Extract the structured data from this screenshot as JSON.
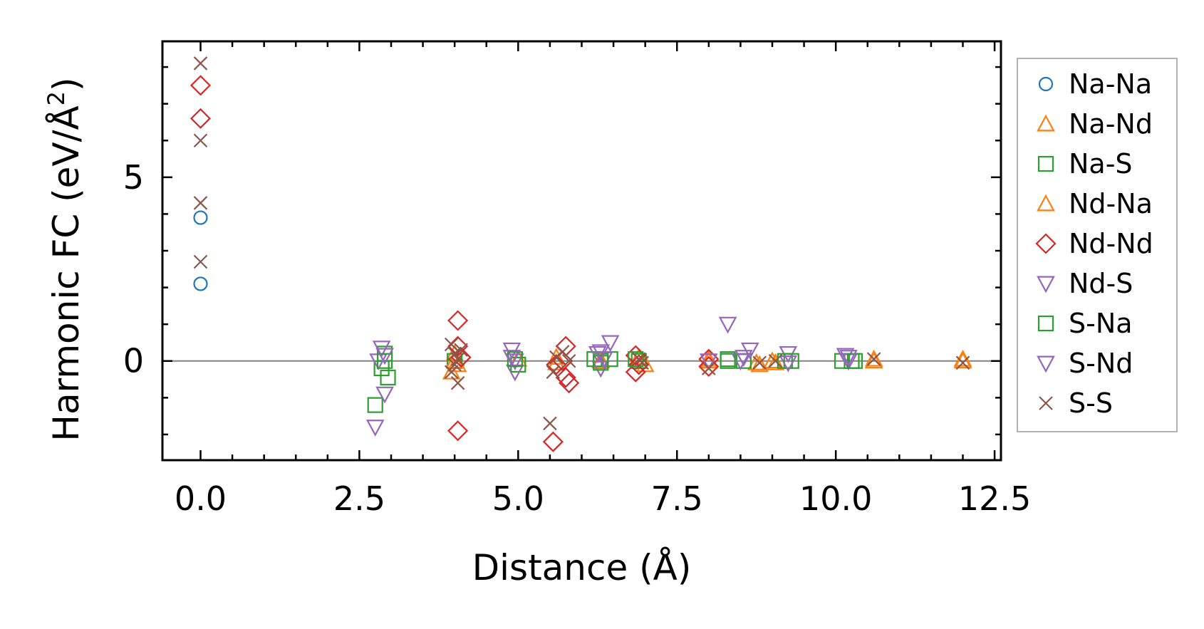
{
  "chart_data": {
    "type": "scatter",
    "title": "",
    "xlabel": "Distance (Å)",
    "ylabel": "Harmonic FC (eV/Å",
    "ylabel_sup": "2",
    "ylabel_close": ")",
    "xlim": [
      -0.6,
      12.6
    ],
    "ylim": [
      -2.7,
      8.7
    ],
    "xticks": [
      0.0,
      2.5,
      5.0,
      7.5,
      10.0,
      12.5
    ],
    "xtick_labels": [
      "0.0",
      "2.5",
      "5.0",
      "7.5",
      "10.0",
      "12.5"
    ],
    "yticks": [
      0,
      5
    ],
    "ytick_labels": [
      "0",
      "5"
    ],
    "zero_line": 0,
    "legend_position": "outside-right",
    "series": [
      {
        "name": "Na-Na",
        "marker": "circle",
        "color": "#1f77b4",
        "x": [
          0.0,
          0.0
        ],
        "y": [
          3.9,
          2.1
        ]
      },
      {
        "name": "Na-Nd",
        "marker": "triangle-up",
        "color": "#ff7f0e",
        "x": [
          3.95,
          4.0,
          4.05,
          5.0,
          5.6,
          6.3,
          6.9,
          7.0,
          8.0,
          8.75,
          9.0,
          9.05,
          10.6,
          12.0
        ],
        "y": [
          -0.3,
          0.2,
          -0.1,
          0.05,
          -0.05,
          0.02,
          0.1,
          -0.1,
          0.0,
          -0.05,
          0.0,
          -0.05,
          0.0,
          0.0
        ]
      },
      {
        "name": "Na-S",
        "marker": "square",
        "color": "#2ca02c",
        "x": [
          2.75,
          2.85,
          2.9,
          2.95,
          4.0,
          5.0,
          6.2,
          6.3,
          6.45,
          6.9,
          8.3,
          8.55,
          9.2,
          10.1,
          10.25
        ],
        "y": [
          -1.2,
          -0.2,
          0.2,
          -0.45,
          0.0,
          -0.1,
          0.05,
          0.0,
          0.05,
          0.0,
          0.0,
          0.0,
          0.0,
          0.0,
          0.0
        ]
      },
      {
        "name": "Nd-Na",
        "marker": "triangle-up",
        "color": "#ff7f0e",
        "x": [
          4.0,
          5.6,
          6.3,
          8.0,
          8.8,
          10.6,
          12.0
        ],
        "y": [
          0.0,
          0.1,
          0.0,
          0.05,
          -0.1,
          0.05,
          0.05
        ]
      },
      {
        "name": "Nd-Nd",
        "marker": "diamond",
        "color": "#d62728",
        "x": [
          0.0,
          0.0,
          4.05,
          4.05,
          4.1,
          4.05,
          5.55,
          5.6,
          5.75,
          5.8,
          5.75,
          5.7,
          6.85,
          6.9,
          6.85,
          8.0,
          8.0
        ],
        "y": [
          7.5,
          6.6,
          1.1,
          0.4,
          0.1,
          -1.9,
          -2.2,
          -0.1,
          0.4,
          -0.6,
          -0.45,
          0.0,
          0.15,
          -0.1,
          -0.3,
          0.05,
          -0.15
        ]
      },
      {
        "name": "Nd-S",
        "marker": "triangle-down",
        "color": "#9467bd",
        "x": [
          2.75,
          2.8,
          2.85,
          2.9,
          4.9,
          4.95,
          4.95,
          6.25,
          6.3,
          6.35,
          6.45,
          8.0,
          8.3,
          8.5,
          8.65,
          9.25,
          10.15,
          10.2
        ],
        "y": [
          -1.8,
          0.0,
          0.35,
          -0.9,
          0.3,
          0.0,
          -0.3,
          0.2,
          -0.2,
          0.05,
          0.5,
          0.0,
          1.0,
          0.0,
          0.3,
          0.2,
          0.15,
          0.0
        ]
      },
      {
        "name": "S-Na",
        "marker": "square",
        "color": "#2ca02c",
        "x": [
          2.9,
          4.95,
          6.3,
          6.85,
          8.3,
          9.3,
          10.3
        ],
        "y": [
          0.0,
          0.05,
          -0.05,
          0.05,
          0.05,
          0.0,
          0.0
        ]
      },
      {
        "name": "S-Nd",
        "marker": "triangle-down",
        "color": "#9467bd",
        "x": [
          2.9,
          4.9,
          6.3,
          8.55,
          9.25,
          10.2
        ],
        "y": [
          0.15,
          0.1,
          0.25,
          0.1,
          -0.05,
          0.1
        ]
      },
      {
        "name": "S-S",
        "marker": "x",
        "color": "#8c564b",
        "x": [
          0.0,
          0.0,
          0.0,
          0.0,
          3.95,
          3.95,
          4.0,
          4.0,
          4.05,
          4.1,
          4.05,
          5.5,
          5.55,
          5.6,
          5.7,
          5.8,
          6.9,
          6.95,
          8.0,
          8.8,
          9.05,
          10.6,
          12.0
        ],
        "y": [
          8.1,
          6.0,
          4.3,
          2.7,
          0.45,
          -0.3,
          0.2,
          -0.1,
          -0.6,
          0.3,
          0.05,
          -1.7,
          -0.3,
          0.1,
          0.25,
          0.0,
          0.05,
          -0.05,
          -0.2,
          -0.05,
          0.0,
          0.05,
          -0.05
        ]
      }
    ]
  }
}
